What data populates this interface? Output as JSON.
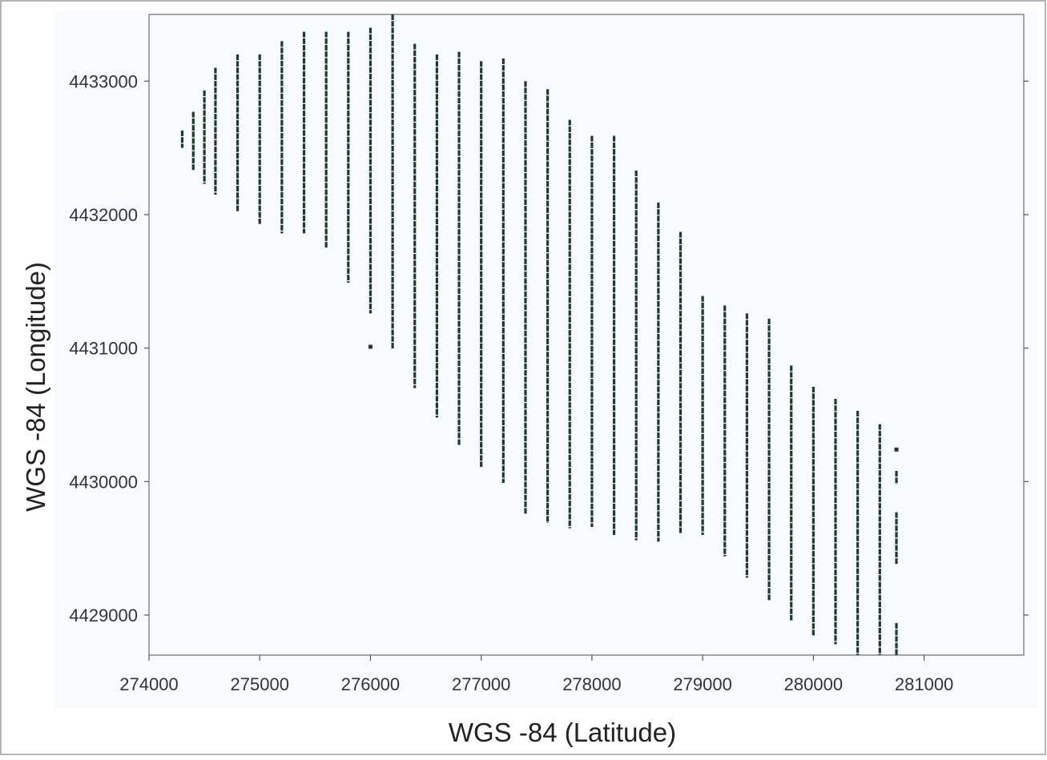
{
  "chart_data": {
    "type": "line",
    "title": "",
    "xlabel": "WGS -84 (Latitude)",
    "ylabel": "WGS -84 (Longitude)",
    "xlim": [
      274000,
      281900
    ],
    "ylim": [
      4428700,
      4433500
    ],
    "xticks": [
      274000,
      275000,
      276000,
      277000,
      278000,
      279000,
      280000,
      281000
    ],
    "yticks": [
      4429000,
      4430000,
      4431000,
      4432000,
      4433000
    ],
    "xtick_labels": [
      "274000",
      "275000",
      "276000",
      "277000",
      "278000",
      "279000",
      "280000",
      "281000"
    ],
    "ytick_labels": [
      "4429000",
      "4430000",
      "4431000",
      "4432000",
      "4433000"
    ],
    "grid": false,
    "legend": "none",
    "colors": {
      "line": "#1f3a2a",
      "plot_bg": "#f7fbff",
      "frame": "#6e6e6e",
      "text": "#333333"
    },
    "series": [
      {
        "x": 274300,
        "y_min": 4432500,
        "y_max": 4432630
      },
      {
        "x": 274400,
        "y_min": 4432330,
        "y_max": 4432770
      },
      {
        "x": 274500,
        "y_min": 4432230,
        "y_max": 4432930
      },
      {
        "x": 274600,
        "y_min": 4432150,
        "y_max": 4433100
      },
      {
        "x": 274800,
        "y_min": 4432020,
        "y_max": 4433200
      },
      {
        "x": 275000,
        "y_min": 4431930,
        "y_max": 4433200
      },
      {
        "x": 275200,
        "y_min": 4431860,
        "y_max": 4433300
      },
      {
        "x": 275400,
        "y_min": 4431860,
        "y_max": 4433370
      },
      {
        "x": 275600,
        "y_min": 4431750,
        "y_max": 4433370
      },
      {
        "x": 275800,
        "y_min": 4431490,
        "y_max": 4433370
      },
      {
        "x": 276000,
        "y_min": 4431260,
        "y_max": 4433400
      },
      {
        "x": 276200,
        "y_min": 4430990,
        "y_max": 4433500
      },
      {
        "x": 276400,
        "y_min": 4430700,
        "y_max": 4433280
      },
      {
        "x": 276600,
        "y_min": 4430480,
        "y_max": 4433200
      },
      {
        "x": 276800,
        "y_min": 4430270,
        "y_max": 4433220
      },
      {
        "x": 277000,
        "y_min": 4430110,
        "y_max": 4433150
      },
      {
        "x": 277200,
        "y_min": 4429990,
        "y_max": 4433170
      },
      {
        "x": 277400,
        "y_min": 4429760,
        "y_max": 4433000
      },
      {
        "x": 277600,
        "y_min": 4429690,
        "y_max": 4432940
      },
      {
        "x": 277800,
        "y_min": 4429650,
        "y_max": 4432710
      },
      {
        "x": 278000,
        "y_min": 4429660,
        "y_max": 4432590
      },
      {
        "x": 278200,
        "y_min": 4429600,
        "y_max": 4432590
      },
      {
        "x": 278400,
        "y_min": 4429560,
        "y_max": 4432330
      },
      {
        "x": 278600,
        "y_min": 4429550,
        "y_max": 4432090
      },
      {
        "x": 278800,
        "y_min": 4429610,
        "y_max": 4431870
      },
      {
        "x": 279000,
        "y_min": 4429600,
        "y_max": 4431390
      },
      {
        "x": 279200,
        "y_min": 4429440,
        "y_max": 4431320
      },
      {
        "x": 279400,
        "y_min": 4429280,
        "y_max": 4431260
      },
      {
        "x": 279600,
        "y_min": 4429110,
        "y_max": 4431220
      },
      {
        "x": 279800,
        "y_min": 4428960,
        "y_max": 4430870
      },
      {
        "x": 280000,
        "y_min": 4428840,
        "y_max": 4430710
      },
      {
        "x": 280200,
        "y_min": 4428780,
        "y_max": 4430620
      },
      {
        "x": 280400,
        "y_min": 4428700,
        "y_max": 4430530
      },
      {
        "x": 280600,
        "y_min": 4428700,
        "y_max": 4430430
      },
      {
        "x": 280750,
        "y_min": 4429380,
        "y_max": 4429770
      },
      {
        "x": 280750,
        "y_min": 4429980,
        "y_max": 4430080
      },
      {
        "x": 280750,
        "y_min": 4428700,
        "y_max": 4428940
      }
    ],
    "points": [
      {
        "x": 276000,
        "y": 4431010
      },
      {
        "x": 280750,
        "y": 4430240
      }
    ]
  }
}
